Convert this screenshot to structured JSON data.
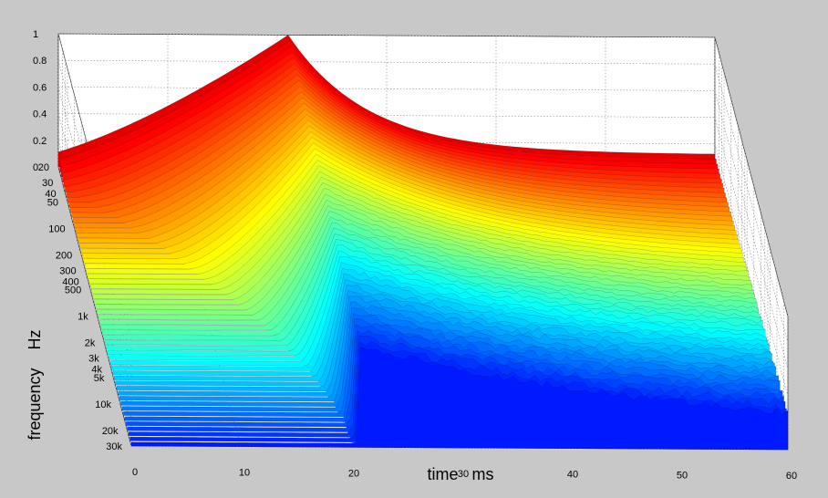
{
  "chart_data": {
    "type": "surface",
    "title": "",
    "xlabel": "time   ms",
    "ylabel": "frequency    Hz",
    "zlabel": "",
    "x_ticks": [
      0,
      10,
      20,
      30,
      40,
      50,
      60
    ],
    "x_tick_labels": [
      "0",
      "10",
      "20",
      "30",
      "40",
      "50",
      "60"
    ],
    "xlim": [
      0,
      60
    ],
    "y_scale": "log",
    "y_ticks": [
      20,
      30,
      40,
      50,
      100,
      200,
      300,
      400,
      500,
      1000,
      2000,
      3000,
      4000,
      5000,
      10000,
      20000,
      30000
    ],
    "y_tick_labels": [
      "20",
      "30",
      "40",
      "50",
      "100",
      "200",
      "300",
      "400",
      "500",
      "1k",
      "2k",
      "3k",
      "4k",
      "5k",
      "10k",
      "20k",
      "30k"
    ],
    "ylim": [
      20,
      30000
    ],
    "z_ticks": [
      0,
      0.2,
      0.4,
      0.6,
      0.8,
      1
    ],
    "z_tick_labels": [
      "0",
      "0.2",
      "0.4",
      "0.6",
      "0.8",
      "1"
    ],
    "zlim": [
      0,
      1
    ],
    "colormap": "jet",
    "grid": true,
    "peak": {
      "time_ms": 21,
      "value": 1
    },
    "colors": {
      "background": "#c8c8c8",
      "grid": "#9a9a9a"
    }
  }
}
